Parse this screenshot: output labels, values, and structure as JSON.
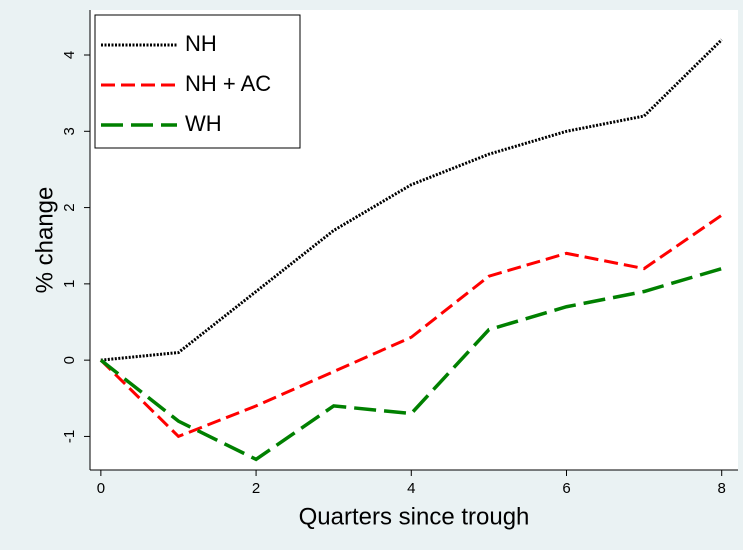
{
  "chart_data": {
    "type": "line",
    "x_label": "Quarters since trough",
    "y_label": "% change",
    "x": [
      0,
      1,
      2,
      3,
      4,
      5,
      6,
      7,
      8
    ],
    "series": [
      {
        "name": "NH",
        "color": "#000000",
        "values": [
          0,
          0.1,
          0.9,
          1.7,
          2.3,
          2.7,
          3.0,
          3.2,
          4.2
        ]
      },
      {
        "name": "NH + AC",
        "color": "#ff0000",
        "values": [
          0,
          -1.0,
          -0.6,
          -0.15,
          0.3,
          1.1,
          1.4,
          1.2,
          1.9
        ]
      },
      {
        "name": "WH",
        "color": "#008000",
        "values": [
          0,
          -0.8,
          -1.3,
          -0.6,
          -0.7,
          0.4,
          0.7,
          0.9,
          1.2
        ]
      }
    ],
    "xlim": [
      -0.14,
      8.21
    ],
    "xticks": [
      0,
      2,
      4,
      6,
      8
    ],
    "ylim": [
      -1.44,
      4.59
    ],
    "yticks": [
      -1,
      0,
      1,
      2,
      3,
      4
    ],
    "legend": "top-left"
  }
}
